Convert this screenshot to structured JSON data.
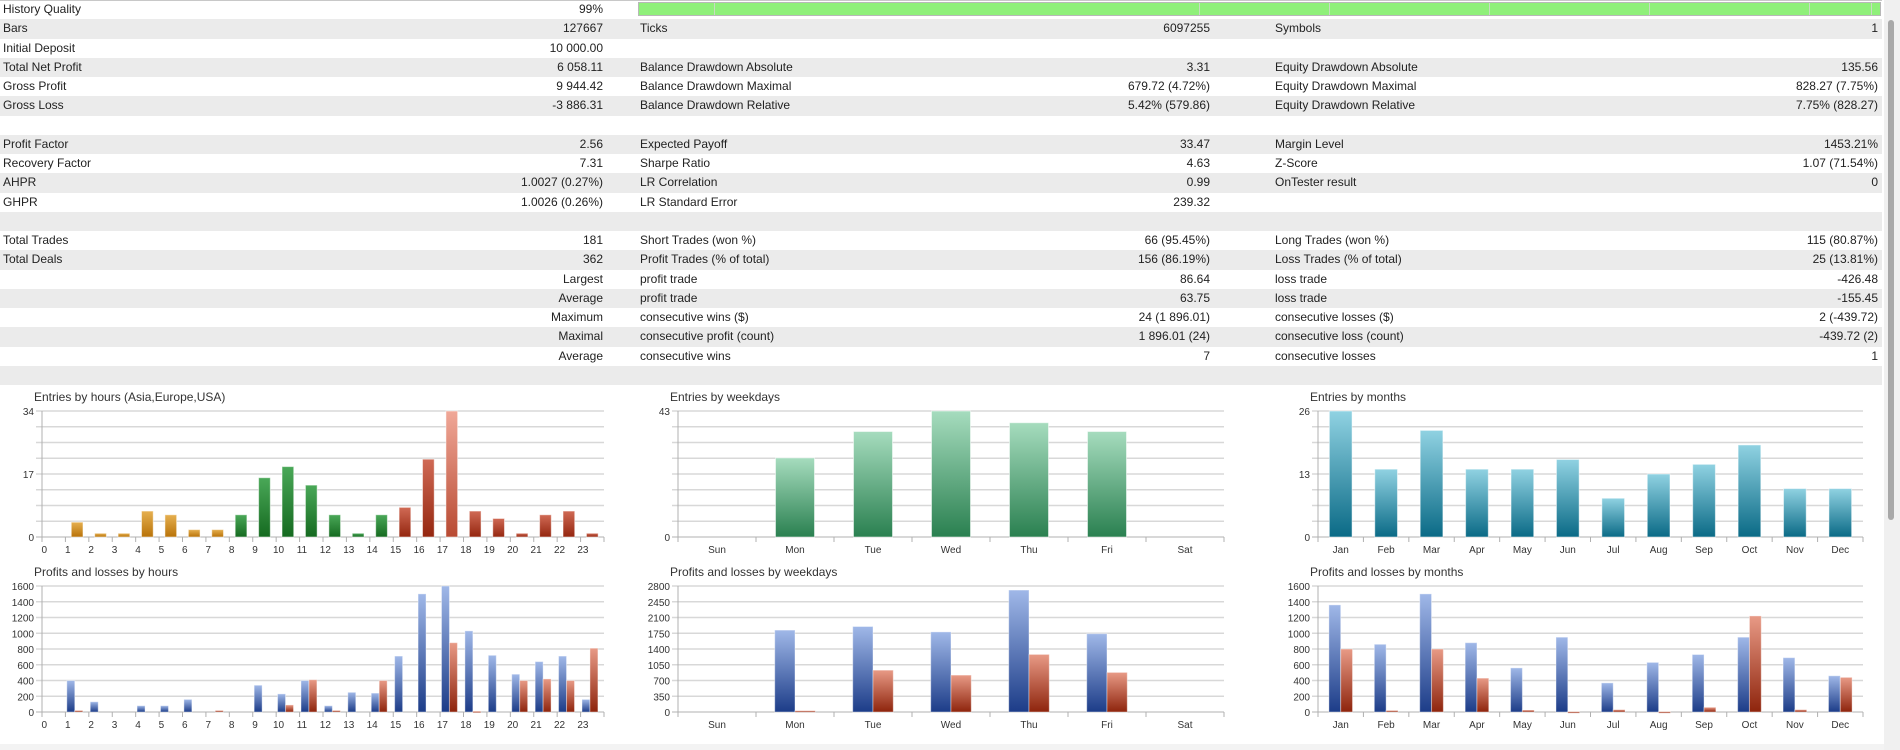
{
  "history_quality_bar": {
    "fill_percent": 99,
    "color": "#8ff07a"
  },
  "rows": [
    [
      "History Quality",
      "99%",
      "",
      "",
      "",
      ""
    ],
    [
      "Bars",
      "127667",
      "Ticks",
      "6097255",
      "Symbols",
      "1"
    ],
    [
      "Initial Deposit",
      "10 000.00",
      "",
      "",
      "",
      ""
    ],
    [
      "Total Net Profit",
      "6 058.11",
      "Balance Drawdown Absolute",
      "3.31",
      "Equity Drawdown Absolute",
      "135.56"
    ],
    [
      "Gross Profit",
      "9 944.42",
      "Balance Drawdown Maximal",
      "679.72 (4.72%)",
      "Equity Drawdown Maximal",
      "828.27 (7.75%)"
    ],
    [
      "Gross Loss",
      "-3 886.31",
      "Balance Drawdown Relative",
      "5.42% (579.86)",
      "Equity Drawdown Relative",
      "7.75% (828.27)"
    ],
    [
      "",
      "",
      "",
      "",
      "",
      ""
    ],
    [
      "Profit Factor",
      "2.56",
      "Expected Payoff",
      "33.47",
      "Margin Level",
      "1453.21%"
    ],
    [
      "Recovery Factor",
      "7.31",
      "Sharpe Ratio",
      "4.63",
      "Z-Score",
      "1.07 (71.54%)"
    ],
    [
      "AHPR",
      "1.0027 (0.27%)",
      "LR Correlation",
      "0.99",
      "OnTester result",
      "0"
    ],
    [
      "GHPR",
      "1.0026 (0.26%)",
      "LR Standard Error",
      "239.32",
      "",
      ""
    ],
    [
      "",
      "",
      "",
      "",
      "",
      ""
    ],
    [
      "Total Trades",
      "181",
      "Short Trades (won %)",
      "66 (95.45%)",
      "Long Trades (won %)",
      "115 (80.87%)"
    ],
    [
      "Total Deals",
      "362",
      "Profit Trades (% of total)",
      "156 (86.19%)",
      "Loss Trades (% of total)",
      "25 (13.81%)"
    ],
    [
      "",
      "Largest",
      "profit trade",
      "86.64",
      "loss trade",
      "-426.48"
    ],
    [
      "",
      "Average",
      "profit trade",
      "63.75",
      "loss trade",
      "-155.45"
    ],
    [
      "",
      "Maximum",
      "consecutive wins ($)",
      "24 (1 896.01)",
      "consecutive losses ($)",
      "2 (-439.72)"
    ],
    [
      "",
      "Maximal",
      "consecutive profit (count)",
      "1 896.01 (24)",
      "consecutive loss (count)",
      "-439.72 (2)"
    ],
    [
      "",
      "Average",
      "consecutive wins",
      "7",
      "consecutive losses",
      "1"
    ],
    [
      "",
      "",
      "",
      "",
      "",
      ""
    ]
  ],
  "colors": {
    "profit": "#2d4f9e",
    "loss": "#a8321c",
    "asia": "#c4850e",
    "europe": "#1c7a2a",
    "usa": "#a4301e",
    "weekday": "#3a9060",
    "month": "#1a7f98"
  },
  "chart_data": [
    {
      "type": "bar",
      "title": "Entries by hours (Asia,Europe,USA)",
      "categories": [
        "0",
        "1",
        "2",
        "3",
        "4",
        "5",
        "6",
        "7",
        "8",
        "9",
        "10",
        "11",
        "12",
        "13",
        "14",
        "15",
        "16",
        "17",
        "18",
        "19",
        "20",
        "21",
        "22",
        "23"
      ],
      "values": [
        0,
        4,
        1,
        1,
        7,
        6,
        2,
        2,
        6,
        16,
        19,
        14,
        6,
        1,
        6,
        8,
        21,
        34,
        7,
        5,
        1,
        6,
        7,
        1
      ],
      "session_colors": [
        "asia",
        "asia",
        "asia",
        "asia",
        "asia",
        "asia",
        "asia",
        "asia",
        "europe",
        "europe",
        "europe",
        "europe",
        "europe",
        "europe",
        "europe",
        "usa",
        "usa",
        "usa",
        "usa",
        "usa",
        "usa",
        "usa",
        "usa",
        "usa"
      ],
      "yticks": [
        0,
        17,
        34
      ],
      "ylim": [
        0,
        34
      ],
      "grid": true
    },
    {
      "type": "bar",
      "title": "Profits and losses by hours",
      "categories": [
        "0",
        "1",
        "2",
        "3",
        "4",
        "5",
        "6",
        "7",
        "8",
        "9",
        "10",
        "11",
        "12",
        "13",
        "14",
        "15",
        "16",
        "17",
        "18",
        "19",
        "20",
        "21",
        "22",
        "23"
      ],
      "series": [
        {
          "values": [
            0,
            400,
            130,
            0,
            80,
            80,
            160,
            0,
            0,
            340,
            230,
            400,
            80,
            250,
            240,
            710,
            1500,
            1600,
            1030,
            720,
            480,
            640,
            710,
            160
          ]
        },
        {
          "values": [
            0,
            20,
            0,
            0,
            0,
            0,
            0,
            20,
            0,
            0,
            90,
            410,
            20,
            0,
            400,
            0,
            0,
            880,
            10,
            0,
            400,
            420,
            400,
            810
          ]
        }
      ],
      "yticks": [
        0,
        200,
        400,
        600,
        800,
        1000,
        1200,
        1400,
        1600
      ],
      "ylim": [
        0,
        1600
      ],
      "grid": true
    },
    {
      "type": "bar",
      "title": "Entries by weekdays",
      "categories": [
        "Sun",
        "Mon",
        "Tue",
        "Wed",
        "Thu",
        "Fri",
        "Sat"
      ],
      "values": [
        0,
        27,
        36,
        43,
        39,
        36,
        0
      ],
      "yticks": [
        0,
        43
      ],
      "ylim": [
        0,
        43
      ],
      "grid": true
    },
    {
      "type": "bar",
      "title": "Profits and losses by weekdays",
      "categories": [
        "Sun",
        "Mon",
        "Tue",
        "Wed",
        "Thu",
        "Fri",
        "Sat"
      ],
      "series": [
        {
          "values": [
            0,
            1820,
            1900,
            1780,
            2710,
            1740,
            0
          ]
        },
        {
          "values": [
            0,
            30,
            930,
            820,
            1280,
            880,
            0
          ]
        }
      ],
      "yticks": [
        0,
        350,
        700,
        1050,
        1400,
        1750,
        2100,
        2450,
        2800
      ],
      "ylim": [
        0,
        2800
      ],
      "grid": true
    },
    {
      "type": "bar",
      "title": "Entries by months",
      "categories": [
        "Jan",
        "Feb",
        "Mar",
        "Apr",
        "May",
        "Jun",
        "Jul",
        "Aug",
        "Sep",
        "Oct",
        "Nov",
        "Dec"
      ],
      "values": [
        26,
        14,
        22,
        14,
        14,
        16,
        8,
        13,
        15,
        19,
        10,
        10
      ],
      "yticks": [
        0,
        13,
        26
      ],
      "ylim": [
        0,
        26
      ],
      "grid": true
    },
    {
      "type": "bar",
      "title": "Profits and losses by months",
      "categories": [
        "Jan",
        "Feb",
        "Mar",
        "Apr",
        "May",
        "Jun",
        "Jul",
        "Aug",
        "Sep",
        "Oct",
        "Nov",
        "Dec"
      ],
      "series": [
        {
          "values": [
            1360,
            860,
            1500,
            880,
            560,
            950,
            370,
            630,
            730,
            950,
            690,
            460
          ]
        },
        {
          "values": [
            800,
            20,
            800,
            430,
            25,
            5,
            30,
            5,
            60,
            1220,
            30,
            440
          ]
        }
      ],
      "yticks": [
        0,
        200,
        400,
        600,
        800,
        1000,
        1200,
        1400,
        1600
      ],
      "ylim": [
        0,
        1600
      ],
      "grid": true
    }
  ]
}
